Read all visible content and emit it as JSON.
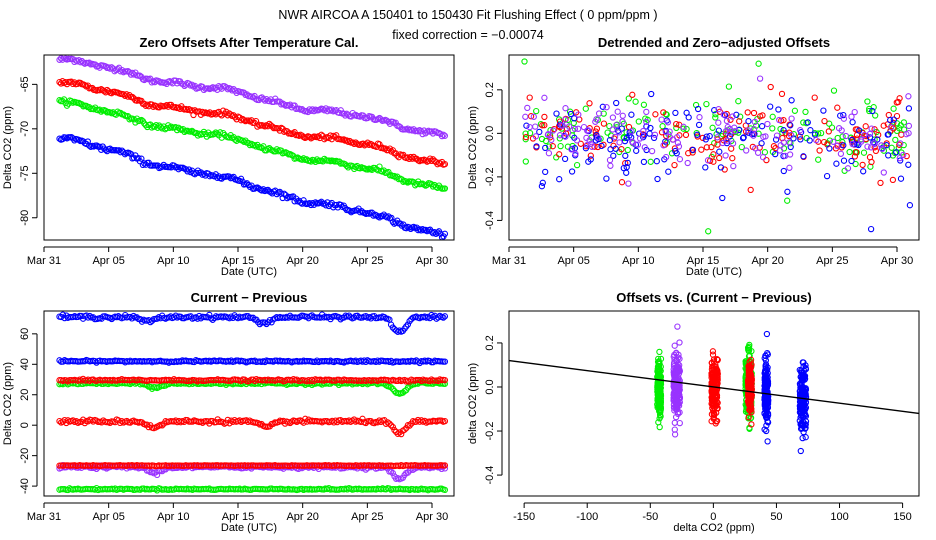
{
  "figure": {
    "suptitle": "NWR   AIRCOA A   150401 to 150430   Fit Flushing Effect ( 0 ppm/ppm )",
    "correction": "fixed correction = −0.00074"
  },
  "colors": {
    "A": "#9933ff",
    "B": "#ff0000",
    "C": "#00ee00",
    "D": "#0000ff",
    "fit": "#000000"
  },
  "chart_data": [
    {
      "id": "p1",
      "type": "scatter",
      "title": "Zero Offsets After Temperature Cal.",
      "xlabel": "Date (UTC)",
      "ylabel": "Delta CO2 (ppm)",
      "xlim": [
        0,
        31.7
      ],
      "ylim": [
        -82.5,
        -61.7
      ],
      "xticks": [
        {
          "v": 0,
          "label": "Mar 31"
        },
        {
          "v": 5,
          "label": "Apr 05"
        },
        {
          "v": 10,
          "label": "Apr 10"
        },
        {
          "v": 15,
          "label": "Apr 15"
        },
        {
          "v": 20,
          "label": "Apr 20"
        },
        {
          "v": 25,
          "label": "Apr 25"
        },
        {
          "v": 30,
          "label": "Apr 30"
        }
      ],
      "yticks": [
        {
          "v": -65,
          "label": "-65"
        },
        {
          "v": -70,
          "label": "-70"
        },
        {
          "v": -75,
          "label": "-75"
        },
        {
          "v": -80,
          "label": "-80"
        }
      ],
      "trend_series": [
        {
          "name": "A",
          "color": "#9933ff",
          "start": [
            1.2,
            -62.2
          ],
          "end": [
            31,
            -70.6
          ],
          "band": 0.35
        },
        {
          "name": "B",
          "color": "#ff0000",
          "start": [
            1.2,
            -64.8
          ],
          "end": [
            31,
            -73.8
          ],
          "band": 0.35
        },
        {
          "name": "C",
          "color": "#00ee00",
          "start": [
            1.2,
            -67.0
          ],
          "end": [
            31,
            -76.6
          ],
          "band": 0.35
        },
        {
          "name": "D",
          "color": "#0000ff",
          "start": [
            1.2,
            -71.1
          ],
          "end": [
            31,
            -81.8
          ],
          "band": 0.4
        }
      ]
    },
    {
      "id": "p2",
      "type": "scatter",
      "title": "Detrended and Zero−adjusted Offsets",
      "xlabel": "Date (UTC)",
      "ylabel": "Delta CO2 (ppm)",
      "xlim": [
        0,
        31.7
      ],
      "ylim": [
        -0.49,
        0.36
      ],
      "xticks": [
        {
          "v": 0,
          "label": "Mar 31"
        },
        {
          "v": 5,
          "label": "Apr 05"
        },
        {
          "v": 10,
          "label": "Apr 10"
        },
        {
          "v": 15,
          "label": "Apr 15"
        },
        {
          "v": 20,
          "label": "Apr 20"
        },
        {
          "v": 25,
          "label": "Apr 25"
        },
        {
          "v": 30,
          "label": "Apr 30"
        }
      ],
      "yticks": [
        {
          "v": -0.4,
          "label": "-0.4"
        },
        {
          "v": -0.2,
          "label": "-0.2"
        },
        {
          "v": 0.0,
          "label": "0.0"
        },
        {
          "v": 0.2,
          "label": "0.2"
        }
      ],
      "noise_series": [
        {
          "name": "C",
          "color": "#00ee00",
          "x_range": [
            1.2,
            31
          ],
          "center": 0,
          "spread": 0.14,
          "extremes": [
            [
              1.2,
              0.33
            ],
            [
              15.4,
              -0.45
            ],
            [
              19.3,
              0.32
            ]
          ]
        },
        {
          "name": "B",
          "color": "#ff0000",
          "x_range": [
            1.2,
            31
          ],
          "center": 0,
          "spread": 0.14,
          "extremes": []
        },
        {
          "name": "D",
          "color": "#0000ff",
          "x_range": [
            1.2,
            31
          ],
          "center": -0.04,
          "spread": 0.17,
          "extremes": [
            [
              28,
              -0.44
            ],
            [
              31,
              -0.33
            ]
          ]
        },
        {
          "name": "A",
          "color": "#9933ff",
          "x_range": [
            1.2,
            31
          ],
          "center": 0,
          "spread": 0.13,
          "extremes": []
        }
      ]
    },
    {
      "id": "p3",
      "type": "scatter",
      "title": "Current − Previous",
      "xlabel": "Date (UTC)",
      "ylabel": "Delta CO2 (ppm)",
      "xlim": [
        0,
        31.7
      ],
      "ylim": [
        -46.5,
        75
      ],
      "xticks": [
        {
          "v": 0,
          "label": "Mar 31"
        },
        {
          "v": 5,
          "label": "Apr 05"
        },
        {
          "v": 10,
          "label": "Apr 10"
        },
        {
          "v": 15,
          "label": "Apr 15"
        },
        {
          "v": 20,
          "label": "Apr 20"
        },
        {
          "v": 25,
          "label": "Apr 25"
        },
        {
          "v": 30,
          "label": "Apr 30"
        }
      ],
      "yticks": [
        {
          "v": -40,
          "label": "-40"
        },
        {
          "v": -20,
          "label": "-20"
        },
        {
          "v": 0,
          "label": "0"
        },
        {
          "v": 20,
          "label": "20"
        },
        {
          "v": 40,
          "label": "40"
        },
        {
          "v": 60,
          "label": "60"
        }
      ],
      "band_series": [
        {
          "name": "D",
          "color": "#0000ff",
          "level": 42,
          "spread": 0.6,
          "dips": []
        },
        {
          "name": "D",
          "color": "#0000ff",
          "level": 71,
          "spread": 1.2,
          "dips": [
            [
              8,
              3
            ],
            [
              17,
              4
            ],
            [
              27.5,
              10
            ]
          ]
        },
        {
          "name": "C",
          "color": "#00ee00",
          "level": 27.5,
          "spread": 0.8,
          "dips": [
            [
              8.6,
              3
            ],
            [
              27.5,
              7
            ]
          ]
        },
        {
          "name": "B",
          "color": "#ff0000",
          "level": 29.5,
          "spread": 0.6,
          "dips": []
        },
        {
          "name": "B",
          "color": "#ff0000",
          "level": 2.5,
          "spread": 1.2,
          "dips": [
            [
              8.5,
              4
            ],
            [
              17.2,
              4
            ],
            [
              27.5,
              8
            ]
          ]
        },
        {
          "name": "A",
          "color": "#9933ff",
          "level": -27.5,
          "spread": 1.0,
          "dips": [
            [
              8.6,
              4
            ],
            [
              27.5,
              8
            ]
          ]
        },
        {
          "name": "B",
          "color": "#ff0000",
          "level": -26.5,
          "spread": 0.3,
          "dips": []
        },
        {
          "name": "C",
          "color": "#00ee00",
          "level": -42,
          "spread": 0.5,
          "dips": []
        }
      ]
    },
    {
      "id": "p4",
      "type": "scatter",
      "title": "Offsets vs. (Current − Previous)",
      "xlabel": "delta CO2 (ppm)",
      "ylabel": "delta CO2 (ppm)",
      "xlim": [
        -162,
        163
      ],
      "ylim": [
        -0.495,
        0.345
      ],
      "xticks": [
        {
          "v": -150,
          "label": "-150"
        },
        {
          "v": -100,
          "label": "-100"
        },
        {
          "v": -50,
          "label": "-50"
        },
        {
          "v": 0,
          "label": "0"
        },
        {
          "v": 50,
          "label": "50"
        },
        {
          "v": 100,
          "label": "100"
        },
        {
          "v": 150,
          "label": "150"
        }
      ],
      "yticks": [
        {
          "v": -0.4,
          "label": "-0.4"
        },
        {
          "v": -0.2,
          "label": "-0.2"
        },
        {
          "v": 0.0,
          "label": "0.0"
        },
        {
          "v": 0.2,
          "label": "0.2"
        }
      ],
      "clusters": [
        {
          "name": "C",
          "color": "#00ee00",
          "x": -43,
          "xspread": 1.5,
          "center": 0.0,
          "spread": 0.11
        },
        {
          "name": "A",
          "color": "#9933ff",
          "x": -29,
          "xspread": 2.5,
          "center": 0.0,
          "spread": 0.14
        },
        {
          "name": "B",
          "color": "#ff0000",
          "x": 1,
          "xspread": 2.5,
          "center": 0.0,
          "spread": 0.13
        },
        {
          "name": "C",
          "color": "#00ee00",
          "x": 28,
          "xspread": 2.5,
          "center": 0.0,
          "spread": 0.14
        },
        {
          "name": "B",
          "color": "#ff0000",
          "x": 29,
          "xspread": 1.5,
          "center": 0.0,
          "spread": 0.1
        },
        {
          "name": "D",
          "color": "#0000ff",
          "x": 42,
          "xspread": 1.5,
          "center": -0.03,
          "spread": 0.13
        },
        {
          "name": "D",
          "color": "#0000ff",
          "x": 71,
          "xspread": 2.5,
          "center": -0.05,
          "spread": 0.14
        }
      ],
      "fit_line": {
        "slope": -0.00074,
        "intercept": -0.0,
        "x_range": [
          -162,
          163
        ],
        "y_at_xmin": 0.12,
        "y_at_xmax": -0.12
      }
    }
  ]
}
